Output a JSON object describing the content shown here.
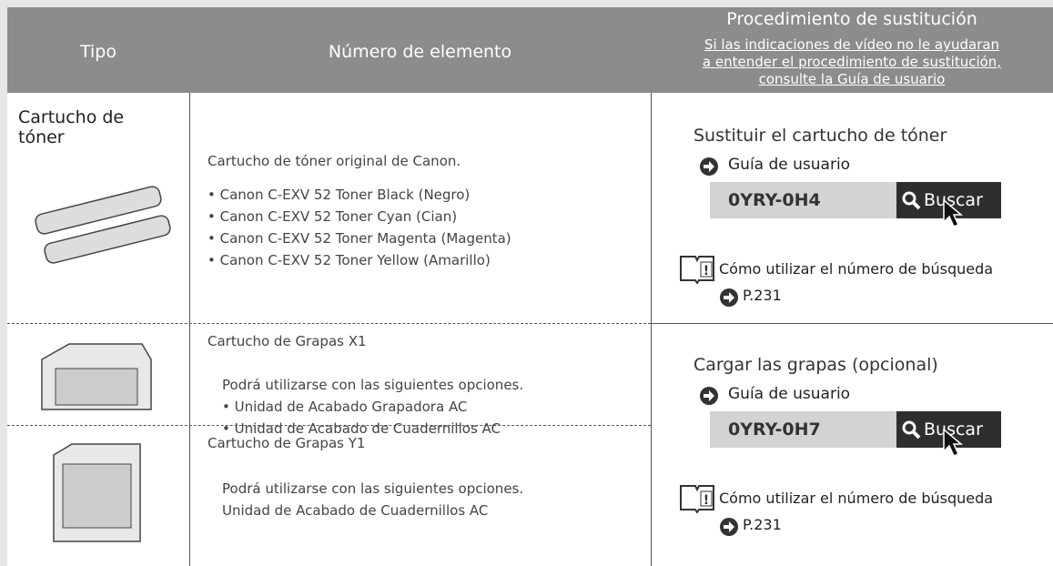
{
  "header": {
    "type": "Tipo",
    "item": "Número de elemento",
    "procedure": "Procedimiento de sustitución",
    "note_lines": [
      "Si las indicaciones de vídeo no le ayudaran",
      "a entender el procedimiento de sustitución,",
      "consulte la Guía de usuario"
    ]
  },
  "rows": [
    {
      "type": "Cartucho de tóner",
      "title": "Cartucho de tóner original de Canon.",
      "items": [
        "Canon C-EXV 52 Toner Black (Negro)",
        "Canon C-EXV 52 Toner Cyan (Cian)",
        "Canon C-EXV 52 Toner Magenta (Magenta)",
        "Canon C-EXV 52 Toner Yellow (Amarillo)"
      ]
    },
    {
      "title": "Cartucho de Grapas X1",
      "note": "Podrá utilizarse con las siguientes opciones.",
      "items": [
        "Unidad de Acabado Grapadora AC",
        "Unidad de Acabado de Cuadernillos AC"
      ]
    },
    {
      "title": "Cartucho de Grapas Y1",
      "note": "Podrá utilizarse con las siguientes opciones.",
      "items": [
        "Unidad de Acabado de Cuadernillos AC"
      ]
    }
  ],
  "procedures": [
    {
      "title": "Sustituir el cartucho de tóner",
      "guide": "Guía de usuario",
      "code": "0YRY-0H4",
      "button": "Buscar",
      "help": "Cómo utilizar el número de búsqueda",
      "page": "P.231"
    },
    {
      "title": "Cargar las grapas (opcional)",
      "guide": "Guía de usuario",
      "code": "0YRY-0H7",
      "button": "Buscar",
      "help": "Cómo utilizar el número de búsqueda",
      "page": "P.231"
    }
  ]
}
